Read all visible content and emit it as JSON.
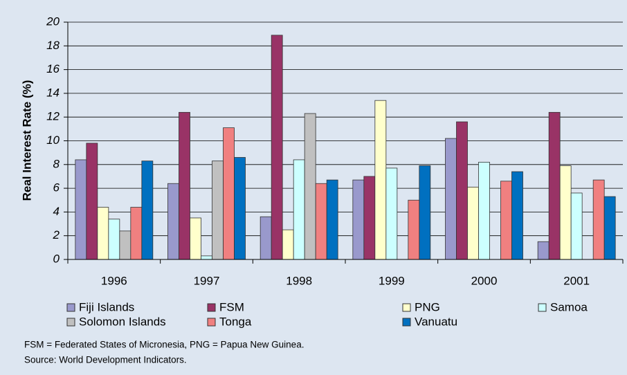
{
  "chart_data": {
    "type": "bar",
    "y_label": "Real Interest Rate (%)",
    "categories": [
      "1996",
      "1997",
      "1998",
      "1999",
      "2000",
      "2001"
    ],
    "series": [
      {
        "name": "Fiji Islands",
        "color": "#9999cc",
        "values": [
          8.4,
          6.4,
          3.6,
          6.7,
          10.2,
          1.5
        ]
      },
      {
        "name": "FSM",
        "color": "#993366",
        "values": [
          9.8,
          12.4,
          18.9,
          7.0,
          11.6,
          12.4
        ]
      },
      {
        "name": "PNG",
        "color": "#ffffcc",
        "values": [
          4.4,
          3.5,
          2.5,
          13.4,
          6.1,
          7.9
        ]
      },
      {
        "name": "Samoa",
        "color": "#ccffff",
        "values": [
          3.4,
          0.3,
          8.4,
          7.7,
          8.2,
          5.6
        ]
      },
      {
        "name": "Solomon Islands",
        "color": "#c0c0c0",
        "values": [
          2.4,
          8.3,
          12.3,
          null,
          null,
          null
        ]
      },
      {
        "name": "Tonga",
        "color": "#f08080",
        "values": [
          4.4,
          11.1,
          6.4,
          5.0,
          6.6,
          6.7
        ]
      },
      {
        "name": "Vanuatu",
        "color": "#0070c0",
        "values": [
          8.3,
          8.6,
          6.7,
          7.9,
          7.4,
          5.3
        ]
      }
    ],
    "ylim": [
      0,
      20
    ],
    "yticks": [
      0,
      2,
      4,
      6,
      8,
      10,
      12,
      14,
      16,
      18,
      20
    ],
    "grid": true,
    "notes": [
      "FSM = Federated States of Micronesia, PNG = Papua New Guinea.",
      "Source: World Development Indicators."
    ]
  }
}
